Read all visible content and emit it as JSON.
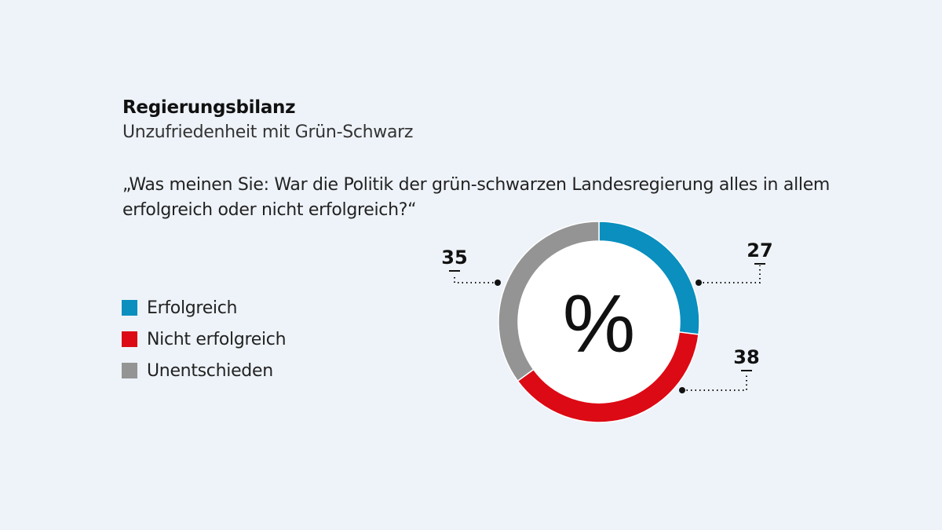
{
  "header": {
    "title": "Regierungsbilanz",
    "subtitle": "Unzufriedenheit mit Grün-Schwarz",
    "question": "„Was meinen Sie: War die Politik der grün-schwarzen Landesregierung alles in allem erfolgreich oder nicht erfolgreich?“"
  },
  "chart_data": {
    "type": "pie",
    "variant": "donut",
    "title": "Regierungsbilanz",
    "subtitle": "Unzufriedenheit mit Grün-Schwarz",
    "center_label": "%",
    "unit": "%",
    "legend_position": "left",
    "slices": [
      {
        "label": "Erfolgreich",
        "value": 27,
        "color": "#0a8fbf"
      },
      {
        "label": "Nicht erfolgreich",
        "value": 38,
        "color": "#dc0a14"
      },
      {
        "label": "Unentschieden",
        "value": 35,
        "color": "#949494"
      }
    ]
  }
}
